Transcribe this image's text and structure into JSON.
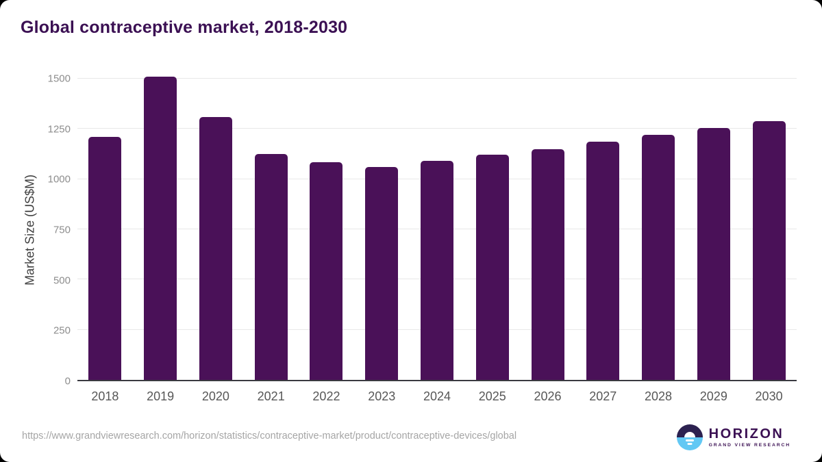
{
  "title": "Global contraceptive market, 2018-2030",
  "chart_data": {
    "type": "bar",
    "title": "Global contraceptive market, 2018-2030",
    "categories": [
      "2018",
      "2019",
      "2020",
      "2021",
      "2022",
      "2023",
      "2024",
      "2025",
      "2026",
      "2027",
      "2028",
      "2029",
      "2030"
    ],
    "values": [
      1210,
      1510,
      1310,
      1125,
      1085,
      1060,
      1090,
      1120,
      1150,
      1185,
      1220,
      1255,
      1290
    ],
    "xlabel": "",
    "ylabel": "Market Size (US$M)",
    "ylim": [
      0,
      1500
    ],
    "yticks": [
      0,
      250,
      500,
      750,
      1000,
      1250,
      1500
    ],
    "grid": true,
    "legend": "none",
    "bar_color": "#4a1158"
  },
  "footer": {
    "source_url": "https://www.grandviewresearch.com/horizon/statistics/contraceptive-market/product/contraceptive-devices/global",
    "logo": {
      "title": "HORIZON",
      "subtitle": "GRAND VIEW RESEARCH"
    }
  },
  "colors": {
    "bar": "#4a1158",
    "title_text": "#3b1053",
    "gridline": "#e8e8e8",
    "axis_line": "#3a3a40",
    "ytick_text": "#8d8d8d",
    "xtick_text": "#575757",
    "url_text": "#a5a5a5",
    "logo_dark": "#2c2150",
    "logo_blue": "#62c8f4",
    "card_bg": "#ffffff",
    "page_bg": "#000000"
  }
}
